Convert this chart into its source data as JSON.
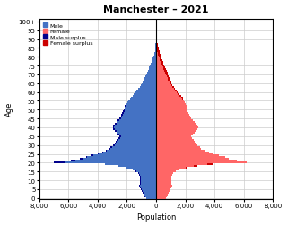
{
  "title": "Manchester – 2021",
  "xlabel": "Population",
  "ylabel": "Age",
  "xlim": [
    -8000,
    8000
  ],
  "xticks": [
    -8000,
    -6000,
    -4000,
    -2000,
    0,
    2000,
    4000,
    6000,
    8000
  ],
  "xticklabels": [
    "8,000",
    "6,000",
    "4,000",
    "2,000",
    "0",
    "2,000",
    "4,000",
    "6,000",
    "8,000"
  ],
  "yticks": [
    0,
    5,
    10,
    15,
    20,
    25,
    30,
    35,
    40,
    45,
    50,
    55,
    60,
    65,
    70,
    75,
    80,
    85,
    90,
    95,
    100
  ],
  "yticklabels": [
    "0",
    "5",
    "10",
    "15",
    "20",
    "25",
    "30",
    "35",
    "40",
    "45",
    "50",
    "55",
    "60",
    "65",
    "70",
    "75",
    "80",
    "85",
    "90",
    "95",
    "100+"
  ],
  "male_color": "#4472C4",
  "female_color": "#FF6666",
  "male_surplus_color": "#00008B",
  "female_surplus_color": "#CC0000",
  "background_color": "#FFFFFF",
  "grid_color": "#CCCCCC",
  "male": [
    700,
    780,
    850,
    920,
    980,
    1050,
    1100,
    1150,
    1120,
    1100,
    1090,
    1100,
    1120,
    1160,
    1220,
    1400,
    1600,
    2000,
    2600,
    3500,
    7000,
    5800,
    5200,
    4800,
    4400,
    4000,
    3700,
    3450,
    3200,
    3100,
    2950,
    2850,
    2750,
    2650,
    2580,
    2520,
    2620,
    2720,
    2820,
    2920,
    2970,
    2920,
    2820,
    2720,
    2620,
    2520,
    2420,
    2370,
    2320,
    2270,
    2220,
    2170,
    2120,
    2070,
    1950,
    1880,
    1780,
    1720,
    1620,
    1520,
    1420,
    1320,
    1220,
    1120,
    1020,
    970,
    920,
    820,
    770,
    720,
    670,
    620,
    570,
    520,
    470,
    420,
    370,
    320,
    270,
    220,
    170,
    140,
    110,
    90,
    70,
    55,
    43,
    33,
    25,
    19,
    14,
    11,
    9,
    7,
    5,
    3,
    2,
    1,
    1,
    1,
    1,
    1
  ],
  "female": [
    650,
    730,
    800,
    870,
    930,
    1000,
    1050,
    1100,
    1070,
    1050,
    1040,
    1050,
    1070,
    1110,
    1170,
    1350,
    1600,
    2100,
    2800,
    3900,
    6200,
    5500,
    5000,
    4700,
    4300,
    3900,
    3600,
    3350,
    3100,
    3000,
    2850,
    2750,
    2650,
    2550,
    2480,
    2420,
    2520,
    2620,
    2720,
    2820,
    2870,
    2820,
    2720,
    2620,
    2520,
    2420,
    2320,
    2270,
    2220,
    2170,
    2170,
    2120,
    2070,
    2020,
    1970,
    1920,
    1870,
    1820,
    1720,
    1620,
    1520,
    1420,
    1320,
    1220,
    1120,
    1070,
    1020,
    970,
    920,
    870,
    820,
    770,
    720,
    670,
    620,
    570,
    520,
    470,
    420,
    370,
    320,
    280,
    250,
    220,
    190,
    160,
    130,
    105,
    85,
    68,
    52,
    39,
    29,
    21,
    14,
    9,
    6,
    4,
    2,
    1,
    1,
    1
  ]
}
